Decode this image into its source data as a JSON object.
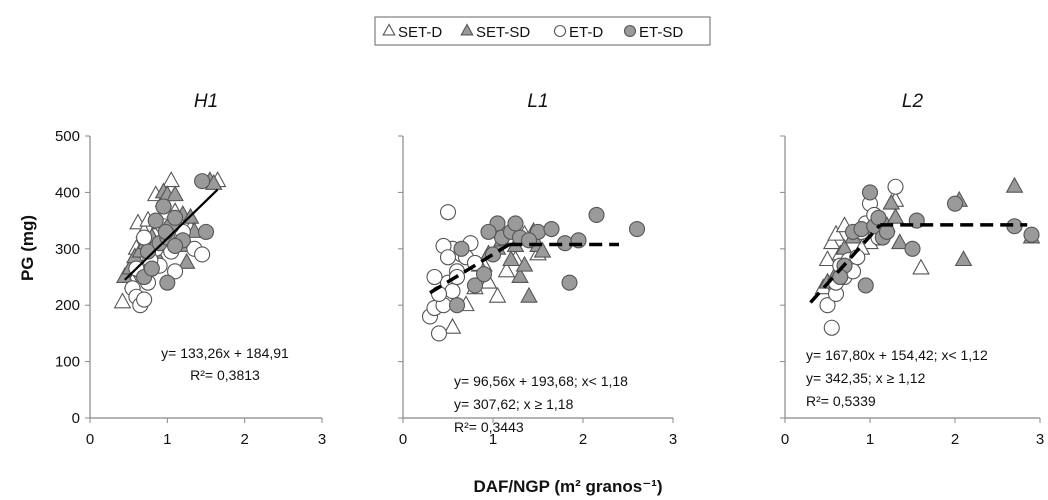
{
  "chart_data": {
    "type": "scatter",
    "legend_position": "top-center",
    "legend": [
      {
        "name": "SET-D",
        "marker": "triangle",
        "fill": "#ffffff"
      },
      {
        "name": "SET-SD",
        "marker": "triangle",
        "fill": "#9a9a9a"
      },
      {
        "name": "ET-D",
        "marker": "circle",
        "fill": "#ffffff"
      },
      {
        "name": "ET-SD",
        "marker": "circle",
        "fill": "#9a9a9a"
      }
    ],
    "ylabel": "PG (mg)",
    "xlabel": "DAF/NGP (m² granos⁻¹)",
    "xlim": [
      0,
      3
    ],
    "ylim": [
      0,
      500
    ],
    "xticks": [
      "0",
      "1",
      "2",
      "3"
    ],
    "yticks": [
      "0",
      "100",
      "200",
      "300",
      "400",
      "500"
    ],
    "grid": false,
    "colors": {
      "open": "#ffffff",
      "filled": "#9a9a9a",
      "stroke": "#555555",
      "line": "#000000"
    },
    "panels": [
      {
        "title": "H1",
        "equation_lines": [
          "y= 133,26x + 184,91",
          "R²= 0,3813"
        ],
        "fit": {
          "style": "solid",
          "segments": [
            [
              [
                0.45,
                245
              ],
              [
                1.65,
                405
              ]
            ]
          ]
        },
        "series": {
          "SET-D": [
            [
              0.42,
              205
            ],
            [
              0.5,
              260
            ],
            [
              0.55,
              240
            ],
            [
              0.6,
              300
            ],
            [
              0.62,
              345
            ],
            [
              0.7,
              330
            ],
            [
              0.75,
              350
            ],
            [
              0.85,
              395
            ],
            [
              0.95,
              385
            ],
            [
              1.05,
              420
            ],
            [
              1.1,
              365
            ],
            [
              1.15,
              340
            ],
            [
              1.25,
              310
            ],
            [
              1.65,
              420
            ],
            [
              1.3,
              335
            ]
          ],
          "SET-SD": [
            [
              0.45,
              250
            ],
            [
              0.52,
              265
            ],
            [
              0.58,
              285
            ],
            [
              0.65,
              295
            ],
            [
              0.72,
              310
            ],
            [
              0.8,
              320
            ],
            [
              0.9,
              345
            ],
            [
              0.95,
              400
            ],
            [
              1.0,
              395
            ],
            [
              1.1,
              395
            ],
            [
              1.2,
              360
            ],
            [
              1.3,
              355
            ],
            [
              1.35,
              330
            ],
            [
              1.55,
              420
            ],
            [
              1.6,
              415
            ],
            [
              1.2,
              305
            ],
            [
              0.85,
              290
            ],
            [
              1.25,
              275
            ]
          ],
          "ET-D": [
            [
              0.55,
              230
            ],
            [
              0.6,
              215
            ],
            [
              0.65,
              200
            ],
            [
              0.7,
              210
            ],
            [
              0.75,
              240
            ],
            [
              0.8,
              265
            ],
            [
              0.85,
              300
            ],
            [
              0.7,
              320
            ],
            [
              0.95,
              340
            ],
            [
              1.0,
              315
            ],
            [
              1.05,
              295
            ],
            [
              1.1,
              260
            ],
            [
              1.2,
              330
            ],
            [
              1.35,
              300
            ],
            [
              1.45,
              290
            ],
            [
              0.6,
              265
            ],
            [
              0.9,
              270
            ],
            [
              0.78,
              280
            ]
          ],
          "ET-SD": [
            [
              0.7,
              250
            ],
            [
              0.75,
              295
            ],
            [
              0.8,
              265
            ],
            [
              0.85,
              350
            ],
            [
              0.9,
              310
            ],
            [
              0.95,
              375
            ],
            [
              1.0,
              320
            ],
            [
              1.05,
              340
            ],
            [
              1.1,
              355
            ],
            [
              1.2,
              315
            ],
            [
              1.45,
              420
            ],
            [
              1.5,
              330
            ],
            [
              1.0,
              240
            ],
            [
              1.1,
              305
            ],
            [
              0.98,
              330
            ]
          ]
        }
      },
      {
        "title": "L1",
        "equation_lines": [
          "y= 96,56x + 193,68; x< 1,18",
          "y= 307,62; x ≥ 1,18",
          "R²= 0,3443"
        ],
        "fit": {
          "style": "dashed",
          "segments": [
            [
              [
                0.3,
                222
              ],
              [
                1.18,
                307.62
              ]
            ],
            [
              [
                1.18,
                307.62
              ],
              [
                2.4,
                307.62
              ]
            ]
          ]
        },
        "series": {
          "SET-D": [
            [
              0.55,
              160
            ],
            [
              0.7,
              200
            ],
            [
              0.8,
              230
            ],
            [
              0.95,
              240
            ],
            [
              1.05,
              215
            ],
            [
              1.15,
              260
            ],
            [
              1.25,
              280
            ],
            [
              0.9,
              270
            ],
            [
              1.5,
              290
            ],
            [
              1.35,
              325
            ]
          ],
          "SET-SD": [
            [
              0.85,
              270
            ],
            [
              0.95,
              290
            ],
            [
              1.05,
              300
            ],
            [
              1.1,
              315
            ],
            [
              1.2,
              330
            ],
            [
              1.3,
              250
            ],
            [
              1.35,
              270
            ],
            [
              1.4,
              215
            ],
            [
              1.5,
              305
            ],
            [
              1.55,
              295
            ],
            [
              1.2,
              280
            ],
            [
              1.25,
              305
            ],
            [
              1.45,
              330
            ]
          ],
          "ET-D": [
            [
              0.3,
              180
            ],
            [
              0.35,
              195
            ],
            [
              0.4,
              150
            ],
            [
              0.45,
              200
            ],
            [
              0.5,
              240
            ],
            [
              0.55,
              225
            ],
            [
              0.6,
              260
            ],
            [
              0.55,
              300
            ],
            [
              0.65,
              290
            ],
            [
              0.7,
              285
            ],
            [
              0.75,
              310
            ],
            [
              0.45,
              305
            ],
            [
              0.5,
              285
            ],
            [
              0.35,
              250
            ],
            [
              0.4,
              220
            ],
            [
              0.5,
              365
            ],
            [
              0.6,
              250
            ],
            [
              0.8,
              275
            ]
          ],
          "ET-SD": [
            [
              0.6,
              200
            ],
            [
              0.65,
              300
            ],
            [
              0.8,
              235
            ],
            [
              0.9,
              255
            ],
            [
              1.0,
              290
            ],
            [
              1.05,
              345
            ],
            [
              1.1,
              320
            ],
            [
              1.2,
              330
            ],
            [
              1.3,
              320
            ],
            [
              1.5,
              330
            ],
            [
              1.65,
              335
            ],
            [
              1.8,
              310
            ],
            [
              1.85,
              240
            ],
            [
              1.95,
              315
            ],
            [
              2.15,
              360
            ],
            [
              2.6,
              335
            ],
            [
              0.95,
              330
            ],
            [
              1.25,
              345
            ],
            [
              1.4,
              315
            ]
          ]
        }
      },
      {
        "title": "L2",
        "equation_lines": [
          "y= 167,80x + 154,42;  x< 1,12",
          "y= 342,35; x ≥ 1,12",
          "R²= 0,5339"
        ],
        "fit": {
          "style": "dashed",
          "segments": [
            [
              [
                0.3,
                204.76
              ],
              [
                1.12,
                342.35
              ]
            ],
            [
              [
                1.12,
                342.35
              ],
              [
                2.85,
                342.35
              ]
            ]
          ]
        },
        "series": {
          "SET-D": [
            [
              0.45,
              230
            ],
            [
              0.5,
              280
            ],
            [
              0.55,
              310
            ],
            [
              0.6,
              325
            ],
            [
              0.65,
              290
            ],
            [
              0.75,
              275
            ],
            [
              0.85,
              320
            ],
            [
              1.0,
              310
            ],
            [
              1.3,
              385
            ],
            [
              1.6,
              265
            ],
            [
              0.7,
              340
            ],
            [
              0.9,
              300
            ]
          ],
          "SET-SD": [
            [
              0.5,
              240
            ],
            [
              0.6,
              255
            ],
            [
              0.7,
              300
            ],
            [
              0.8,
              320
            ],
            [
              0.9,
              340
            ],
            [
              1.0,
              350
            ],
            [
              1.1,
              355
            ],
            [
              1.2,
              340
            ],
            [
              1.25,
              380
            ],
            [
              1.3,
              355
            ],
            [
              2.05,
              385
            ],
            [
              2.1,
              280
            ],
            [
              2.7,
              410
            ],
            [
              2.9,
              320
            ],
            [
              1.35,
              310
            ]
          ],
          "ET-D": [
            [
              0.5,
              200
            ],
            [
              0.55,
              160
            ],
            [
              0.6,
              220
            ],
            [
              0.65,
              270
            ],
            [
              0.7,
              250
            ],
            [
              0.75,
              280
            ],
            [
              0.85,
              285
            ],
            [
              0.9,
              330
            ],
            [
              0.95,
              345
            ],
            [
              1.0,
              380
            ],
            [
              1.05,
              360
            ],
            [
              1.1,
              320
            ],
            [
              1.3,
              410
            ],
            [
              0.8,
              260
            ],
            [
              0.6,
              240
            ]
          ],
          "ET-SD": [
            [
              0.7,
              270
            ],
            [
              0.8,
              330
            ],
            [
              0.9,
              335
            ],
            [
              0.95,
              235
            ],
            [
              1.0,
              400
            ],
            [
              1.05,
              340
            ],
            [
              1.1,
              355
            ],
            [
              1.15,
              320
            ],
            [
              1.2,
              330
            ],
            [
              1.5,
              300
            ],
            [
              1.55,
              350
            ],
            [
              2.0,
              380
            ],
            [
              2.7,
              340
            ],
            [
              2.9,
              325
            ],
            [
              0.65,
              250
            ]
          ]
        }
      }
    ]
  }
}
